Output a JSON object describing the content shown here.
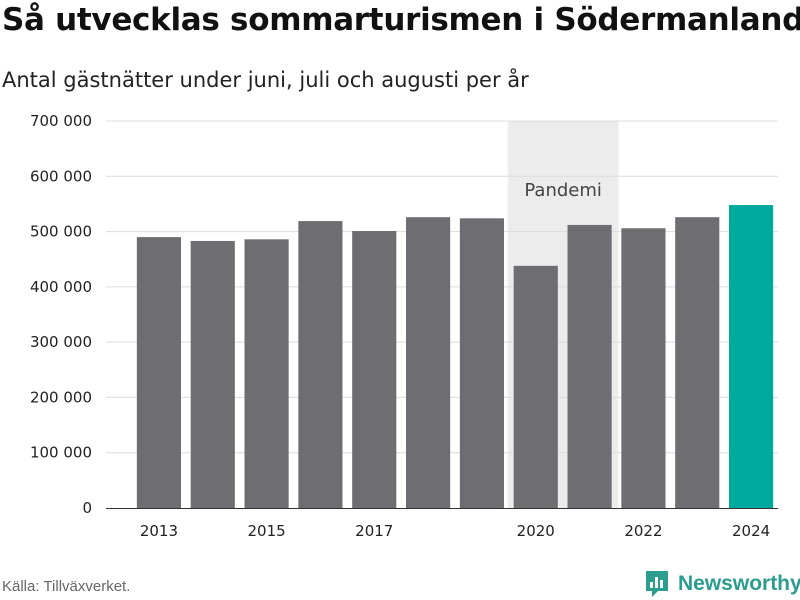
{
  "title": "Så utvecklas sommarturismen i Södermanland",
  "subtitle": "Antal gästnätter under juni, juli och augusti per år",
  "source": "Källa: Tillväxverket.",
  "brand": {
    "name": "Newsworthy",
    "color": "#2a9d8f",
    "icon": "bar-chart-speech-bubble-icon"
  },
  "chart_data": {
    "type": "bar",
    "categories": [
      "2013",
      "2014",
      "2015",
      "2016",
      "2017",
      "2018",
      "2019",
      "2020",
      "2021",
      "2022",
      "2023",
      "2024"
    ],
    "values": [
      490000,
      483000,
      486000,
      519000,
      501000,
      526000,
      524000,
      438000,
      512000,
      506000,
      526000,
      548000
    ],
    "xtick_labels": [
      "2013",
      "",
      "2015",
      "",
      "2017",
      "",
      "",
      "2020",
      "",
      "2022",
      "",
      "2024"
    ],
    "yticks": [
      0,
      100000,
      200000,
      300000,
      400000,
      500000,
      600000,
      700000
    ],
    "ytick_labels": [
      "0",
      "100 000",
      "200 000",
      "300 000",
      "400 000",
      "500 000",
      "600 000",
      "700 000"
    ],
    "ylim": [
      0,
      700000
    ],
    "grid": true,
    "colors": {
      "default": "#6e6d72",
      "highlight": "#00a99d",
      "band": "#ececec"
    },
    "highlight_category": "2024",
    "annotation": {
      "label": "Pandemi",
      "from": "2020",
      "to": "2021"
    }
  }
}
